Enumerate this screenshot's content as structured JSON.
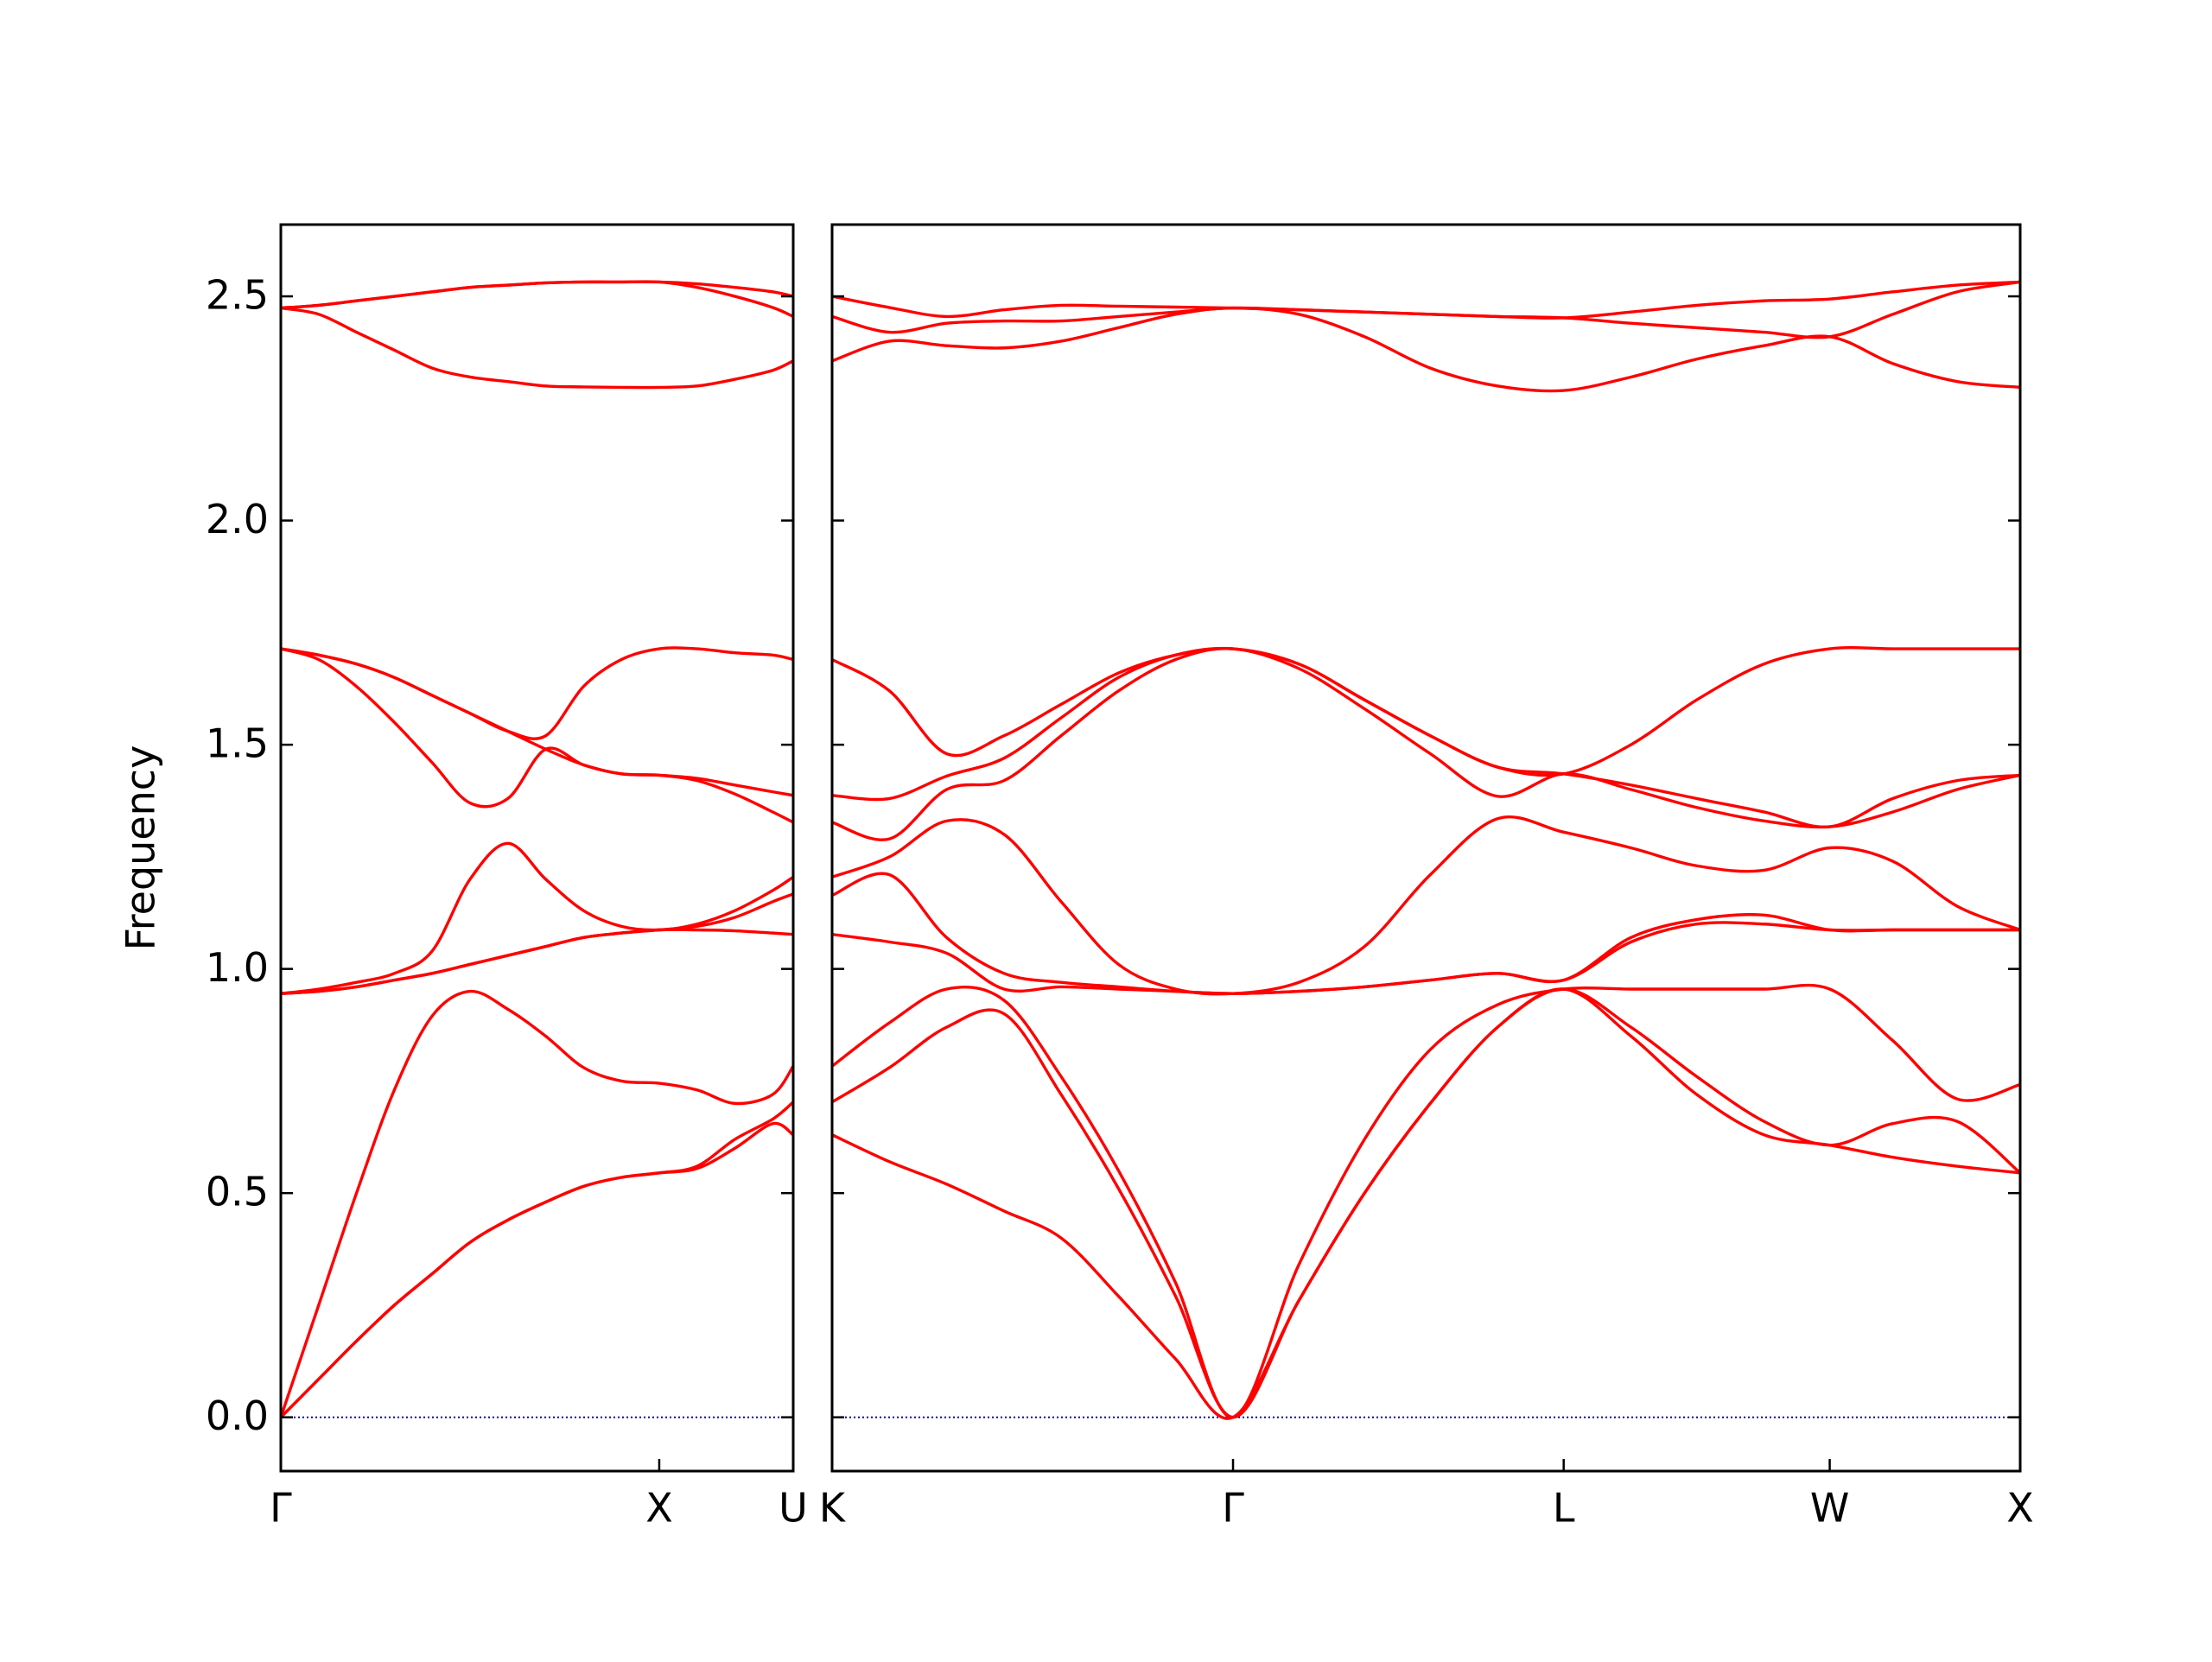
{
  "chart_data": [
    {
      "type": "line",
      "ylabel": "Frequency",
      "color": "#ff0000",
      "hline": 0,
      "hline_color": "#0000cc",
      "xlim": [
        0,
        1.354
      ],
      "ylim": [
        -0.12,
        2.66
      ],
      "xticks": [
        {
          "value": 0,
          "label": "Γ"
        },
        {
          "value": 1,
          "label": "X"
        },
        {
          "value": 1.354,
          "label": "U"
        }
      ],
      "yticks": [
        {
          "value": 0,
          "label": "0.0"
        },
        0.5,
        {
          "value": 1,
          "label": "1.0"
        },
        1.5,
        {
          "value": 2,
          "label": "2.0"
        },
        2.5
      ],
      "show_ytick_labels": true,
      "x": [
        0,
        0.1,
        0.2,
        0.3,
        0.4,
        0.5,
        0.6,
        0.7,
        0.8,
        0.9,
        1.0,
        1.1,
        1.2,
        1.3,
        1.354
      ],
      "series": [
        {
          "values": [
            0,
            0.085,
            0.17,
            0.25,
            0.32,
            0.39,
            0.44,
            0.48,
            0.515,
            0.535,
            0.545,
            0.555,
            0.6,
            0.655,
            0.63
          ]
        },
        {
          "values": [
            0,
            0.085,
            0.17,
            0.25,
            0.32,
            0.39,
            0.44,
            0.48,
            0.515,
            0.535,
            0.545,
            0.56,
            0.62,
            0.665,
            0.703
          ]
        },
        {
          "values": [
            0,
            0.25,
            0.5,
            0.73,
            0.895,
            0.95,
            0.91,
            0.85,
            0.78,
            0.75,
            0.745,
            0.73,
            0.7,
            0.72,
            0.783
          ]
        },
        {
          "values": [
            0.945,
            0.95,
            0.96,
            0.975,
            0.99,
            1.01,
            1.03,
            1.05,
            1.07,
            1.08,
            1.087,
            1.087,
            1.085,
            1.08,
            1.077
          ]
        },
        {
          "values": [
            0.945,
            0.95,
            0.96,
            0.975,
            0.99,
            1.01,
            1.03,
            1.05,
            1.07,
            1.08,
            1.087,
            1.095,
            1.115,
            1.15,
            1.167
          ]
        },
        {
          "values": [
            0.945,
            0.955,
            0.97,
            0.99,
            1.04,
            1.2,
            1.28,
            1.2,
            1.13,
            1.095,
            1.087,
            1.1,
            1.13,
            1.175,
            1.205
          ]
        },
        {
          "values": [
            1.714,
            1.69,
            1.63,
            1.55,
            1.46,
            1.37,
            1.38,
            1.49,
            1.455,
            1.435,
            1.432,
            1.42,
            1.39,
            1.35,
            1.327
          ]
        },
        {
          "values": [
            1.714,
            1.7,
            1.68,
            1.65,
            1.61,
            1.57,
            1.53,
            1.49,
            1.455,
            1.435,
            1.432,
            1.425,
            1.41,
            1.395,
            1.387
          ]
        },
        {
          "values": [
            1.714,
            1.7,
            1.68,
            1.65,
            1.61,
            1.57,
            1.53,
            1.52,
            1.63,
            1.69,
            1.714,
            1.714,
            1.705,
            1.7,
            1.69
          ]
        },
        {
          "values": [
            2.474,
            2.46,
            2.42,
            2.38,
            2.34,
            2.32,
            2.31,
            2.3,
            2.298,
            2.297,
            2.297,
            2.3,
            2.315,
            2.335,
            2.356
          ]
        },
        {
          "values": [
            2.474,
            2.48,
            2.49,
            2.5,
            2.51,
            2.52,
            2.525,
            2.53,
            2.532,
            2.532,
            2.532,
            2.52,
            2.5,
            2.475,
            2.455
          ]
        },
        {
          "values": [
            2.474,
            2.48,
            2.49,
            2.5,
            2.51,
            2.52,
            2.525,
            2.53,
            2.532,
            2.532,
            2.532,
            2.528,
            2.52,
            2.51,
            2.5
          ]
        }
      ]
    },
    {
      "type": "line",
      "color": "#ff0000",
      "hline": 0,
      "hline_color": "#0000cc",
      "xlim": [
        1.354,
        4.498
      ],
      "ylim": [
        -0.12,
        2.66
      ],
      "xticks": [
        {
          "value": 1.354,
          "label": "K"
        },
        {
          "value": 2.415,
          "label": "Γ"
        },
        {
          "value": 3.29,
          "label": "L"
        },
        {
          "value": 3.994,
          "label": "W"
        },
        {
          "value": 4.498,
          "label": "X"
        }
      ],
      "yticks": [
        0,
        0.5,
        1,
        1.5,
        2,
        2.5
      ],
      "show_ytick_labels": false,
      "x": [
        1.354,
        1.506,
        1.657,
        1.809,
        1.96,
        2.112,
        2.263,
        2.415,
        2.589,
        2.763,
        2.937,
        3.115,
        3.29,
        3.468,
        3.642,
        3.82,
        3.994,
        4.161,
        4.331,
        4.498
      ],
      "series": [
        {
          "values": [
            0.63,
            0.57,
            0.52,
            0.46,
            0.4,
            0.27,
            0.13,
            0,
            0.26,
            0.5,
            0.7,
            0.87,
            0.955,
            0.85,
            0.72,
            0.63,
            0.607,
            0.58,
            0.56,
            0.545
          ]
        },
        {
          "values": [
            0.703,
            0.78,
            0.87,
            0.9,
            0.72,
            0.51,
            0.27,
            0,
            0.26,
            0.5,
            0.7,
            0.87,
            0.955,
            0.87,
            0.76,
            0.66,
            0.607,
            0.655,
            0.66,
            0.545
          ]
        },
        {
          "values": [
            0.783,
            0.88,
            0.955,
            0.93,
            0.76,
            0.55,
            0.3,
            0,
            0.34,
            0.62,
            0.82,
            0.92,
            0.955,
            0.955,
            0.955,
            0.955,
            0.955,
            0.84,
            0.71,
            0.742
          ]
        },
        {
          "values": [
            1.077,
            1.06,
            1.035,
            0.955,
            0.96,
            0.955,
            0.95,
            0.945,
            0.95,
            0.96,
            0.975,
            0.99,
            0.975,
            1.06,
            1.1,
            1.1,
            1.087,
            1.087,
            1.087,
            1.087
          ]
        },
        {
          "values": [
            1.164,
            1.21,
            1.07,
            0.99,
            0.97,
            0.96,
            0.95,
            0.945,
            0.95,
            0.96,
            0.975,
            0.99,
            0.975,
            1.07,
            1.11,
            1.12,
            1.087,
            1.087,
            1.087,
            1.087
          ]
        },
        {
          "values": [
            1.205,
            1.25,
            1.33,
            1.3,
            1.15,
            1.01,
            0.955,
            0.945,
            0.97,
            1.05,
            1.21,
            1.335,
            1.305,
            1.27,
            1.23,
            1.22,
            1.27,
            1.24,
            1.14,
            1.087
          ]
        },
        {
          "values": [
            1.327,
            1.29,
            1.4,
            1.42,
            1.52,
            1.62,
            1.69,
            1.714,
            1.67,
            1.58,
            1.48,
            1.385,
            1.435,
            1.4,
            1.36,
            1.33,
            1.317,
            1.35,
            1.4,
            1.432
          ]
        },
        {
          "values": [
            1.387,
            1.38,
            1.43,
            1.47,
            1.56,
            1.65,
            1.7,
            1.714,
            1.68,
            1.6,
            1.52,
            1.45,
            1.435,
            1.41,
            1.38,
            1.35,
            1.317,
            1.38,
            1.42,
            1.432
          ]
        },
        {
          "values": [
            1.69,
            1.62,
            1.48,
            1.52,
            1.59,
            1.66,
            1.7,
            1.714,
            1.68,
            1.6,
            1.52,
            1.45,
            1.435,
            1.5,
            1.6,
            1.68,
            1.714,
            1.714,
            1.714,
            1.714
          ]
        },
        {
          "values": [
            2.356,
            2.4,
            2.39,
            2.385,
            2.4,
            2.43,
            2.46,
            2.474,
            2.46,
            2.41,
            2.34,
            2.3,
            2.29,
            2.32,
            2.36,
            2.39,
            2.41,
            2.35,
            2.31,
            2.297
          ]
        },
        {
          "values": [
            2.455,
            2.42,
            2.44,
            2.445,
            2.445,
            2.455,
            2.465,
            2.474,
            2.47,
            2.465,
            2.46,
            2.455,
            2.452,
            2.44,
            2.43,
            2.42,
            2.41,
            2.46,
            2.51,
            2.532
          ]
        },
        {
          "values": [
            2.5,
            2.475,
            2.455,
            2.47,
            2.48,
            2.478,
            2.476,
            2.474,
            2.47,
            2.465,
            2.46,
            2.455,
            2.452,
            2.465,
            2.48,
            2.49,
            2.494,
            2.51,
            2.525,
            2.532
          ]
        }
      ]
    }
  ]
}
